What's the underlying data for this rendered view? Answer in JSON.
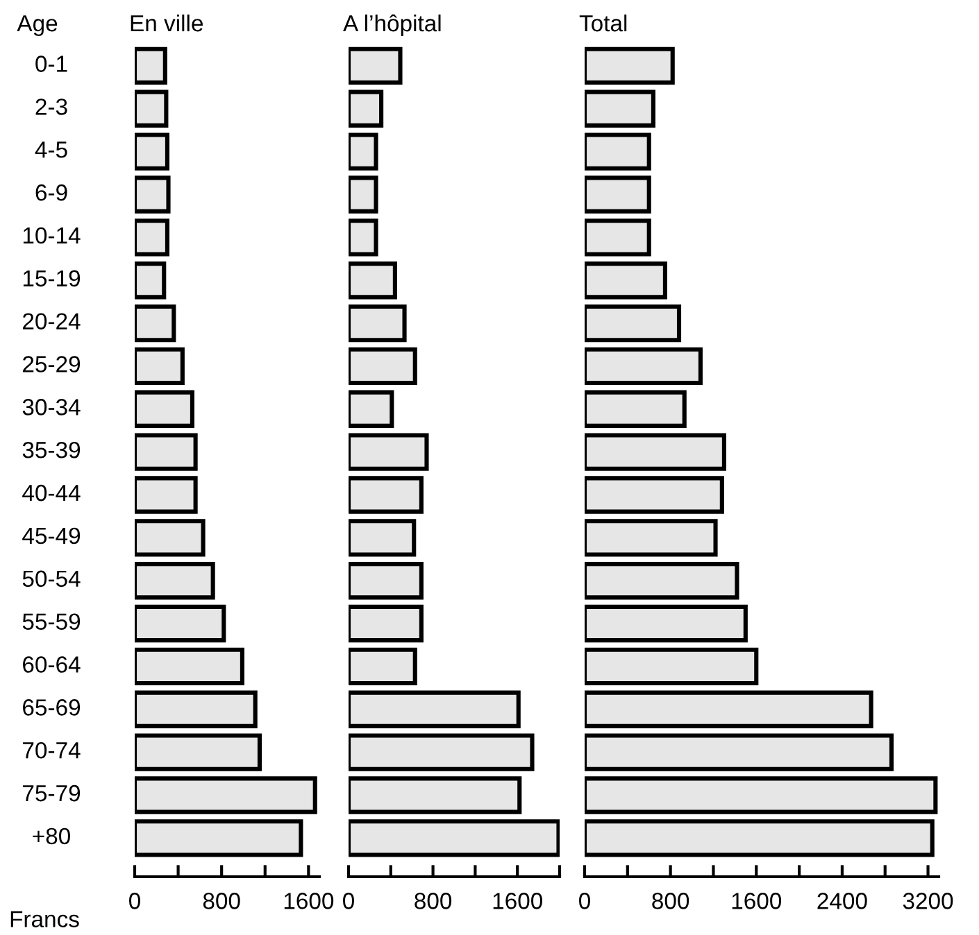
{
  "chart_data": [
    {
      "type": "bar",
      "orientation": "horizontal",
      "title": "En ville",
      "ylabel": "Age",
      "xlabel": "Francs",
      "categories": [
        "0-1",
        "2-3",
        "4-5",
        "6-9",
        "10-14",
        "15-19",
        "20-24",
        "25-29",
        "30-34",
        "35-39",
        "40-44",
        "45-49",
        "50-54",
        "55-59",
        "60-64",
        "65-69",
        "70-74",
        "75-79",
        "+80"
      ],
      "values": [
        280,
        290,
        300,
        310,
        300,
        270,
        360,
        440,
        530,
        560,
        560,
        630,
        720,
        820,
        990,
        1110,
        1150,
        1660,
        1530
      ],
      "color": "#e6e6e6",
      "xlim": [
        0,
        1700
      ],
      "xticks": [
        0,
        {
          "value": 400,
          "label": null
        },
        800,
        {
          "value": 1200,
          "label": null
        },
        1600
      ],
      "grid": false
    },
    {
      "type": "bar",
      "orientation": "horizontal",
      "title": "A l’hôpital",
      "values": [
        490,
        310,
        260,
        260,
        260,
        440,
        530,
        630,
        410,
        740,
        690,
        620,
        690,
        690,
        630,
        1610,
        1740,
        1620,
        1990
      ],
      "color": "#e6e6e6",
      "xlim": [
        0,
        2000
      ],
      "xticks": [
        0,
        {
          "value": 400,
          "label": null
        },
        800,
        {
          "value": 1200,
          "label": null
        },
        1600,
        {
          "value": 2000,
          "label": null
        }
      ],
      "grid": false,
      "tick_labels": "x"
    },
    {
      "type": "bar",
      "orientation": "horizontal",
      "title": "Total",
      "values": [
        820,
        640,
        600,
        600,
        600,
        750,
        880,
        1080,
        930,
        1300,
        1280,
        1220,
        1420,
        1500,
        1600,
        2670,
        2860,
        3270,
        3240
      ],
      "color": "#e6e6e6",
      "xlim": [
        0,
        3300
      ],
      "xticks": [
        0,
        {
          "value": 400,
          "label": null
        },
        800,
        {
          "value": 1200,
          "label": null
        },
        1600,
        {
          "value": 2000,
          "label": null
        },
        2400,
        {
          "value": 2800,
          "label": null
        },
        3200
      ],
      "grid": false,
      "tick_labels": "x"
    }
  ]
}
